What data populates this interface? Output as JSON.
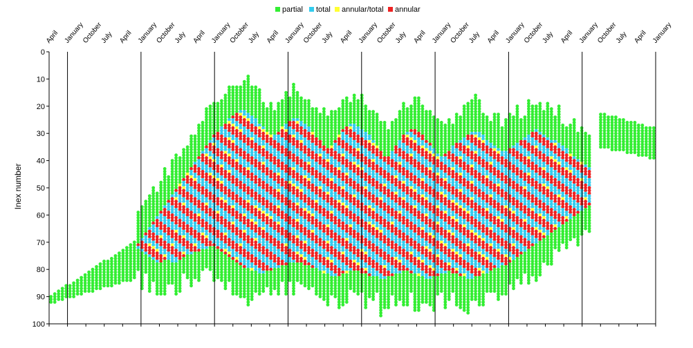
{
  "chart_data": {
    "type": "scatter",
    "title": "",
    "xlabel": "",
    "ylabel": "Inex number",
    "ylim": [
      0,
      100
    ],
    "y_inverted": true,
    "y_ticks": [
      0,
      10,
      20,
      30,
      40,
      50,
      60,
      70,
      80,
      90,
      100
    ],
    "x_tick_labels": [
      "April",
      "January",
      "October",
      "July",
      "April",
      "January",
      "October",
      "July",
      "April",
      "January",
      "October",
      "July",
      "April",
      "January",
      "October",
      "July",
      "April",
      "January",
      "October",
      "July",
      "April",
      "January",
      "October",
      "July",
      "April",
      "January",
      "October",
      "July",
      "April",
      "January",
      "October",
      "July",
      "April",
      "January"
    ],
    "x_tick_start_label_index": 0,
    "january_gridlines": true,
    "legend": {
      "position": "top-center",
      "items": [
        {
          "key": "partial",
          "label": "partial",
          "color": "#33ee33"
        },
        {
          "key": "total",
          "label": "total",
          "color": "#33ccee"
        },
        {
          "key": "annular_total",
          "label": "annular/total",
          "color": "#ffff33"
        },
        {
          "key": "annular",
          "label": "annular",
          "color": "#ee2222"
        }
      ]
    },
    "series_colors": {
      "partial": "#33ee33",
      "total": "#33ccee",
      "annular_total": "#ffff33",
      "annular": "#ee2222"
    },
    "pattern": {
      "x_columns": 160,
      "saros_diagonals": 58,
      "central_band_top_inex_by_column": [
        null,
        null,
        null,
        null,
        null,
        null,
        null,
        null,
        null,
        null,
        null,
        null,
        null,
        null,
        null,
        null,
        null,
        null,
        null,
        null,
        null,
        null,
        null,
        71,
        69,
        67,
        65,
        63,
        61,
        59,
        57,
        55,
        53,
        51,
        49,
        47,
        45,
        43,
        41,
        39,
        37,
        35,
        33,
        31,
        30,
        28,
        27,
        25,
        24,
        23,
        22,
        22,
        23,
        24,
        25,
        27,
        28,
        30,
        31,
        31,
        30,
        28,
        27,
        26,
        25,
        25,
        26,
        27,
        28,
        30,
        32,
        33,
        35,
        36,
        35,
        33,
        31,
        29,
        28,
        27,
        27,
        28,
        29,
        30,
        31,
        33,
        35,
        37,
        39,
        39,
        37,
        35,
        33,
        31,
        30,
        29,
        29,
        30,
        31,
        33,
        34,
        36,
        38,
        39,
        38,
        37,
        35,
        34,
        33,
        32,
        31,
        30,
        30,
        30,
        31,
        33,
        34,
        35,
        36,
        37,
        37,
        36,
        35,
        34,
        33,
        32,
        31,
        30,
        29,
        30,
        31,
        32,
        33,
        33,
        34,
        35,
        36,
        38,
        39,
        40,
        41,
        42,
        43,
        44,
        45,
        null,
        null,
        null,
        null,
        null,
        null,
        null,
        null,
        null,
        null,
        null,
        null,
        null,
        null,
        null,
        null
      ],
      "central_band_bottom_inex_by_column": [
        null,
        null,
        null,
        null,
        null,
        null,
        null,
        null,
        null,
        null,
        null,
        null,
        null,
        null,
        null,
        null,
        null,
        null,
        null,
        null,
        null,
        null,
        null,
        72,
        73,
        74,
        75,
        76,
        77,
        77,
        76,
        76,
        77,
        77,
        76,
        75,
        74,
        74,
        73,
        73,
        72,
        72,
        71,
        71,
        72,
        73,
        74,
        75,
        76,
        77,
        78,
        79,
        79,
        80,
        80,
        81,
        81,
        80,
        80,
        79,
        79,
        78,
        78,
        77,
        77,
        77,
        77,
        78,
        78,
        79,
        79,
        80,
        81,
        81,
        82,
        82,
        82,
        81,
        81,
        80,
        80,
        80,
        81,
        81,
        82,
        82,
        82,
        83,
        83,
        82,
        82,
        81,
        81,
        80,
        80,
        81,
        81,
        82,
        82,
        83,
        83,
        82,
        82,
        81,
        81,
        80,
        81,
        81,
        82,
        82,
        83,
        83,
        82,
        82,
        81,
        81,
        80,
        79,
        79,
        78,
        78,
        77,
        76,
        75,
        74,
        73,
        72,
        71,
        70,
        69,
        68,
        67,
        66,
        65,
        64,
        63,
        62,
        61,
        60,
        59,
        58,
        57,
        56,
        null,
        null,
        null,
        null,
        null,
        null,
        null,
        null,
        null,
        null,
        null,
        null,
        null,
        null,
        null,
        null
      ]
    }
  }
}
